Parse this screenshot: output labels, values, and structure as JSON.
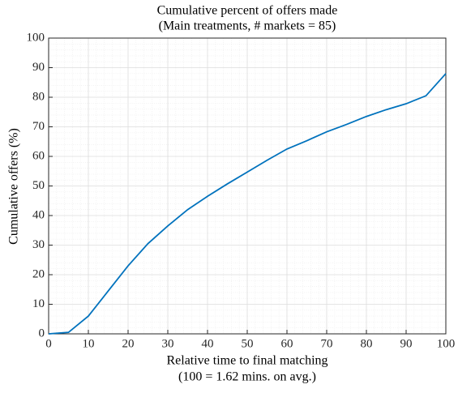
{
  "chart_data": {
    "type": "line",
    "title": [
      "Cumulative percent of offers made",
      "(Main treatments, # markets = 85)"
    ],
    "xlabel": [
      "Relative time to final matching",
      "(100 = 1.62 mins. on avg.)"
    ],
    "ylabel": "Cumulative offers (%)",
    "x": [
      0,
      5,
      10,
      15,
      20,
      25,
      30,
      35,
      40,
      45,
      50,
      55,
      60,
      65,
      70,
      75,
      80,
      85,
      90,
      95,
      100
    ],
    "series": [
      {
        "color": "#0072bd",
        "values": [
          0,
          0.5,
          6,
          14.5,
          23,
          30.5,
          36.5,
          42,
          46.5,
          50.7,
          54.7,
          58.7,
          62.5,
          65.3,
          68.3,
          70.8,
          73.5,
          75.8,
          77.8,
          80.5,
          88
        ]
      }
    ],
    "xlim": [
      0,
      100
    ],
    "xticks": [
      0,
      10,
      20,
      30,
      40,
      50,
      60,
      70,
      80,
      90,
      100
    ],
    "ylim": [
      0,
      100
    ],
    "yticks": [
      0,
      10,
      20,
      30,
      40,
      50,
      60,
      70,
      80,
      90,
      100
    ],
    "grid": true,
    "minor_grid": true
  }
}
